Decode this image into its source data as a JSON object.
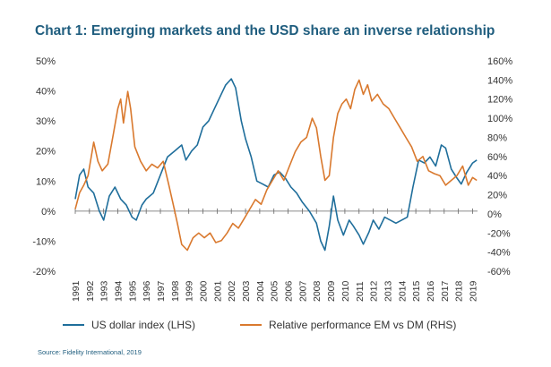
{
  "title": "Chart 1: Emerging markets and the USD share an inverse relationship",
  "source": "Source: Fidelity International, 2019",
  "chart_data": {
    "type": "line",
    "x_labels": [
      "1991",
      "1992",
      "1993",
      "1994",
      "1995",
      "1996",
      "1997",
      "1998",
      "1999",
      "2000",
      "2001",
      "2002",
      "2003",
      "2004",
      "2005",
      "2006",
      "2007",
      "2008",
      "2009",
      "2010",
      "2011",
      "2012",
      "2013",
      "2014",
      "2015",
      "2016",
      "2017",
      "2018",
      "2019"
    ],
    "y_left": {
      "ticks": [
        "50%",
        "40%",
        "30%",
        "20%",
        "10%",
        "0%",
        "-10%",
        "-20%"
      ],
      "range": [
        -20,
        50
      ]
    },
    "y_right": {
      "ticks": [
        "160%",
        "140%",
        "120%",
        "100%",
        "80%",
        "60%",
        "40%",
        "20%",
        "0%",
        "-20%",
        "-40%",
        "-60%"
      ],
      "range": [
        -60,
        160
      ]
    },
    "grid": false,
    "legend_position": "bottom",
    "series": [
      {
        "name": "US dollar index (LHS)",
        "axis": "left",
        "color": "#1f6e9b",
        "points": [
          [
            1991.0,
            4
          ],
          [
            1991.3,
            12
          ],
          [
            1991.6,
            14
          ],
          [
            1991.9,
            8
          ],
          [
            1992.3,
            6
          ],
          [
            1992.7,
            0
          ],
          [
            1993.0,
            -3
          ],
          [
            1993.4,
            5
          ],
          [
            1993.8,
            8
          ],
          [
            1994.2,
            4
          ],
          [
            1994.6,
            2
          ],
          [
            1995.0,
            -2
          ],
          [
            1995.3,
            -3
          ],
          [
            1995.7,
            2
          ],
          [
            1996.0,
            4
          ],
          [
            1996.5,
            6
          ],
          [
            1997.0,
            12
          ],
          [
            1997.5,
            18
          ],
          [
            1998.0,
            20
          ],
          [
            1998.5,
            22
          ],
          [
            1998.8,
            17
          ],
          [
            1999.2,
            20
          ],
          [
            1999.6,
            22
          ],
          [
            2000.0,
            28
          ],
          [
            2000.4,
            30
          ],
          [
            2000.8,
            34
          ],
          [
            2001.2,
            38
          ],
          [
            2001.6,
            42
          ],
          [
            2002.0,
            44
          ],
          [
            2002.3,
            41
          ],
          [
            2002.7,
            30
          ],
          [
            2003.0,
            24
          ],
          [
            2003.4,
            18
          ],
          [
            2003.8,
            10
          ],
          [
            2004.2,
            9
          ],
          [
            2004.6,
            8
          ],
          [
            2005.0,
            12
          ],
          [
            2005.4,
            13
          ],
          [
            2005.8,
            11
          ],
          [
            2006.2,
            8
          ],
          [
            2006.6,
            6
          ],
          [
            2007.0,
            3
          ],
          [
            2007.5,
            0
          ],
          [
            2008.0,
            -4
          ],
          [
            2008.3,
            -10
          ],
          [
            2008.6,
            -13
          ],
          [
            2008.9,
            -5
          ],
          [
            2009.2,
            5
          ],
          [
            2009.5,
            -3
          ],
          [
            2009.9,
            -8
          ],
          [
            2010.3,
            -3
          ],
          [
            2010.6,
            -5
          ],
          [
            2011.0,
            -8
          ],
          [
            2011.3,
            -11
          ],
          [
            2011.7,
            -7
          ],
          [
            2012.0,
            -3
          ],
          [
            2012.4,
            -6
          ],
          [
            2012.8,
            -2
          ],
          [
            2013.2,
            -3
          ],
          [
            2013.6,
            -4
          ],
          [
            2014.0,
            -3
          ],
          [
            2014.4,
            -2
          ],
          [
            2014.8,
            8
          ],
          [
            2015.2,
            17
          ],
          [
            2015.6,
            16
          ],
          [
            2016.0,
            18
          ],
          [
            2016.4,
            15
          ],
          [
            2016.8,
            22
          ],
          [
            2017.1,
            21
          ],
          [
            2017.5,
            14
          ],
          [
            2017.9,
            11
          ],
          [
            2018.2,
            9
          ],
          [
            2018.6,
            13
          ],
          [
            2019.0,
            16
          ],
          [
            2019.3,
            17
          ]
        ]
      },
      {
        "name": "Relative performance EM vs DM (RHS)",
        "axis": "right",
        "color": "#d9792e",
        "points": [
          [
            1991.0,
            5
          ],
          [
            1991.3,
            22
          ],
          [
            1991.6,
            30
          ],
          [
            1991.9,
            40
          ],
          [
            1992.3,
            75
          ],
          [
            1992.6,
            55
          ],
          [
            1992.9,
            45
          ],
          [
            1993.3,
            52
          ],
          [
            1993.7,
            85
          ],
          [
            1994.0,
            110
          ],
          [
            1994.2,
            120
          ],
          [
            1994.4,
            95
          ],
          [
            1994.7,
            128
          ],
          [
            1994.9,
            110
          ],
          [
            1995.2,
            70
          ],
          [
            1995.6,
            55
          ],
          [
            1996.0,
            45
          ],
          [
            1996.4,
            52
          ],
          [
            1996.8,
            48
          ],
          [
            1997.2,
            55
          ],
          [
            1997.6,
            30
          ],
          [
            1997.9,
            10
          ],
          [
            1998.2,
            -10
          ],
          [
            1998.5,
            -32
          ],
          [
            1998.9,
            -38
          ],
          [
            1999.3,
            -25
          ],
          [
            1999.7,
            -20
          ],
          [
            2000.1,
            -25
          ],
          [
            2000.5,
            -20
          ],
          [
            2000.9,
            -30
          ],
          [
            2001.3,
            -28
          ],
          [
            2001.7,
            -20
          ],
          [
            2002.1,
            -10
          ],
          [
            2002.5,
            -15
          ],
          [
            2002.9,
            -5
          ],
          [
            2003.3,
            5
          ],
          [
            2003.7,
            15
          ],
          [
            2004.1,
            10
          ],
          [
            2004.5,
            25
          ],
          [
            2004.9,
            35
          ],
          [
            2005.3,
            45
          ],
          [
            2005.7,
            35
          ],
          [
            2006.1,
            50
          ],
          [
            2006.5,
            65
          ],
          [
            2006.9,
            75
          ],
          [
            2007.3,
            80
          ],
          [
            2007.7,
            100
          ],
          [
            2008.0,
            90
          ],
          [
            2008.3,
            60
          ],
          [
            2008.6,
            35
          ],
          [
            2008.9,
            40
          ],
          [
            2009.2,
            80
          ],
          [
            2009.5,
            105
          ],
          [
            2009.8,
            115
          ],
          [
            2010.1,
            120
          ],
          [
            2010.4,
            110
          ],
          [
            2010.7,
            130
          ],
          [
            2011.0,
            140
          ],
          [
            2011.3,
            125
          ],
          [
            2011.6,
            135
          ],
          [
            2011.9,
            118
          ],
          [
            2012.3,
            125
          ],
          [
            2012.7,
            115
          ],
          [
            2013.1,
            110
          ],
          [
            2013.5,
            100
          ],
          [
            2013.9,
            90
          ],
          [
            2014.3,
            80
          ],
          [
            2014.7,
            70
          ],
          [
            2015.1,
            55
          ],
          [
            2015.5,
            60
          ],
          [
            2015.9,
            45
          ],
          [
            2016.3,
            42
          ],
          [
            2016.7,
            40
          ],
          [
            2017.1,
            30
          ],
          [
            2017.5,
            35
          ],
          [
            2017.9,
            40
          ],
          [
            2018.3,
            50
          ],
          [
            2018.7,
            30
          ],
          [
            2019.0,
            38
          ],
          [
            2019.3,
            35
          ]
        ]
      }
    ]
  }
}
